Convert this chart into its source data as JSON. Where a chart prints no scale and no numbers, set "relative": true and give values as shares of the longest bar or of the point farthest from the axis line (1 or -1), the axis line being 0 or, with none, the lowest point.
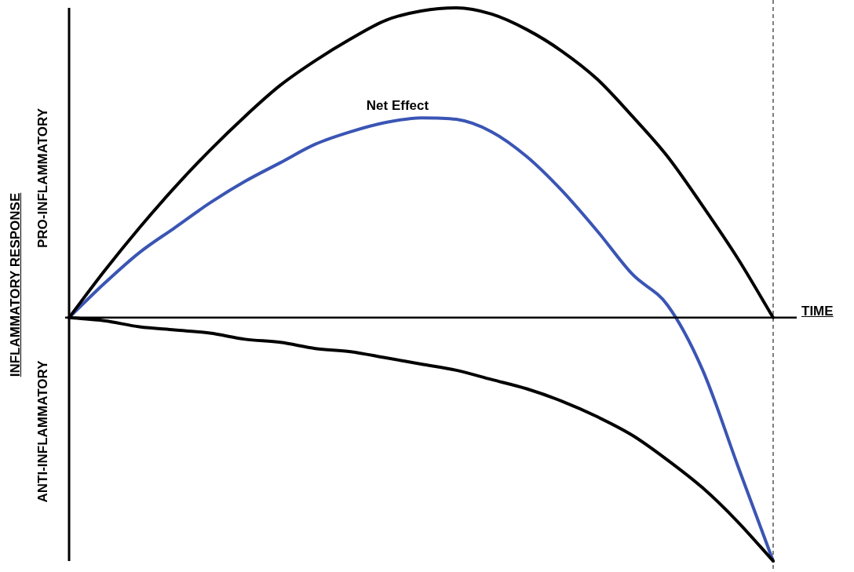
{
  "chart_data": {
    "type": "line",
    "relative": true,
    "xlabel": "TIME",
    "ylabel": "INFLAMMATORY RESPONSE",
    "annotations": [
      "PRO-INFLAMMATORY",
      "ANTI-INFLAMMATORY"
    ],
    "categories": [
      null,
      null,
      null,
      null,
      null,
      null,
      null,
      null,
      null,
      null,
      null,
      null,
      null,
      null,
      null,
      null,
      null,
      null,
      null,
      null,
      null
    ],
    "series": [
      {
        "color": "#000000",
        "values": [
          0,
          0.15,
          0.29,
          0.42,
          0.54,
          0.65,
          0.75,
          0.83,
          0.9,
          0.96,
          0.99,
          1.0,
          0.98,
          0.93,
          0.86,
          0.77,
          0.65,
          0.52,
          0.36,
          0.19,
          0
        ]
      },
      {
        "color": "#000000",
        "values": [
          0,
          -0.01,
          -0.03,
          -0.04,
          -0.05,
          -0.07,
          -0.08,
          -0.1,
          -0.11,
          -0.13,
          -0.15,
          -0.17,
          -0.2,
          -0.23,
          -0.27,
          -0.32,
          -0.38,
          -0.46,
          -0.55,
          -0.66,
          -0.786
        ]
      },
      {
        "name": "Net Effect",
        "color": "#3a55b4",
        "values": [
          0,
          0.11,
          0.21,
          0.29,
          0.37,
          0.44,
          0.5,
          0.56,
          0.6,
          0.63,
          0.645,
          0.64,
          0.6,
          0.52,
          0.41,
          0.28,
          0.14,
          0.04,
          -0.17,
          -0.48,
          -0.786
        ]
      }
    ],
    "grid": false,
    "legend": false,
    "tick_labels": false,
    "marker": "none",
    "line_style": "solid"
  }
}
